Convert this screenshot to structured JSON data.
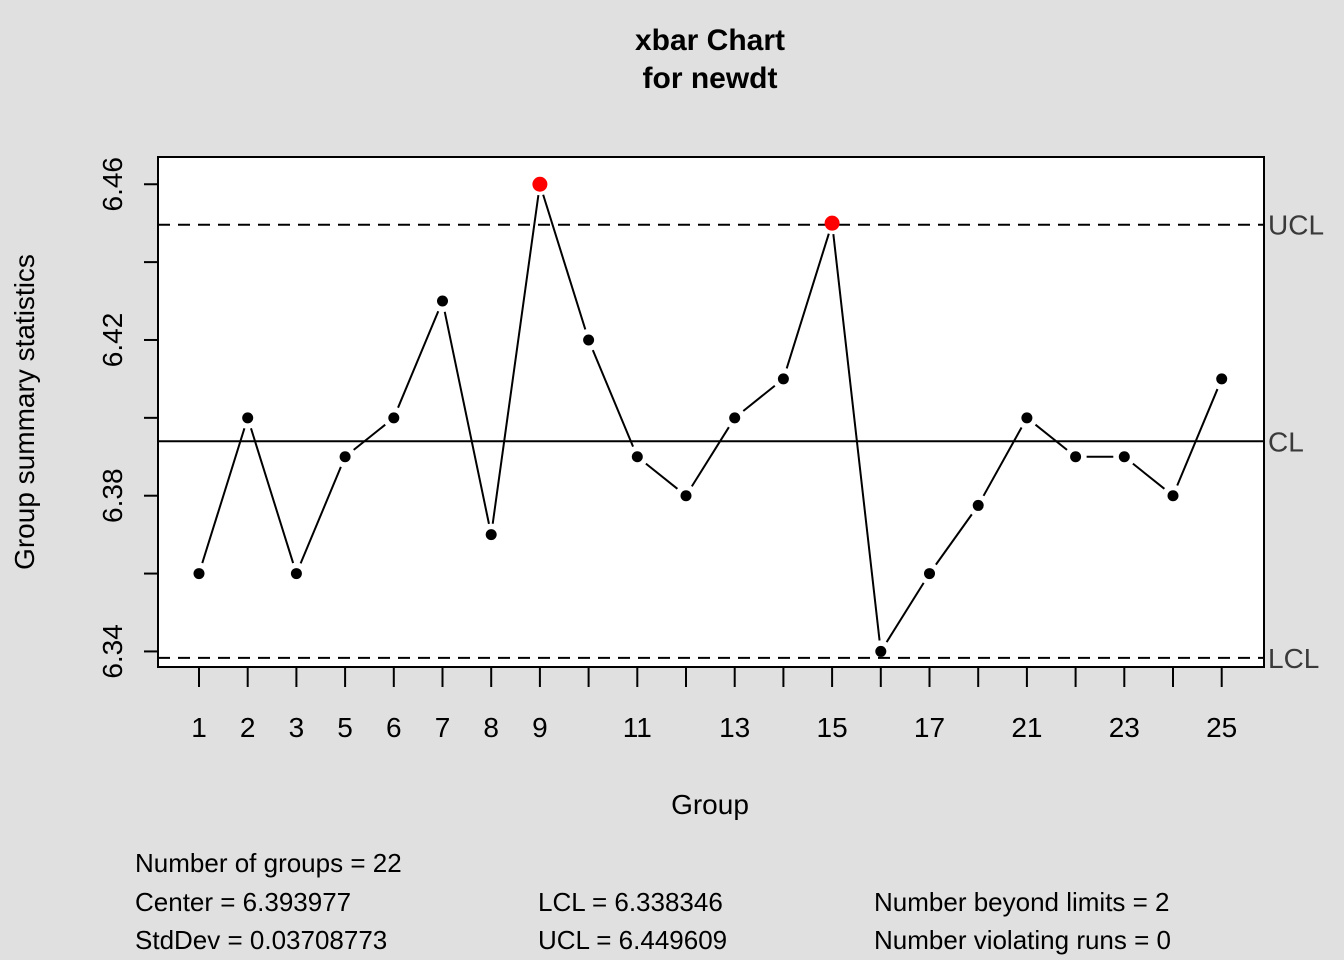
{
  "chart_data": {
    "type": "line",
    "title": "xbar Chart",
    "subtitle": "for newdt",
    "xlabel": "Group",
    "ylabel": "Group summary statistics",
    "ylim": [
      6.336,
      6.467
    ],
    "y_ticks": [
      "6.34",
      "6.38",
      "6.42",
      "6.46"
    ],
    "x_labels": [
      "1",
      "2",
      "3",
      "5",
      "6",
      "7",
      "8",
      "9",
      "11",
      "13",
      "15",
      "17",
      "21",
      "23",
      "25"
    ],
    "x": [
      1,
      2,
      3,
      4,
      5,
      6,
      7,
      8,
      9,
      10,
      11,
      12,
      13,
      14,
      15,
      16,
      17,
      18,
      19,
      20,
      21,
      22
    ],
    "values": [
      6.36,
      6.4,
      6.36,
      6.39,
      6.4,
      6.43,
      6.37,
      6.46,
      6.42,
      6.39,
      6.38,
      6.4,
      6.41,
      6.45,
      6.34,
      6.36,
      6.3775,
      6.4,
      6.39,
      6.39,
      6.38,
      6.41
    ],
    "out_of_control": [
      8,
      14
    ],
    "point_color": "#000000",
    "violation_color": "#ff0000",
    "limits": {
      "CL": {
        "label": "CL",
        "value": 6.393977
      },
      "UCL": {
        "label": "UCL",
        "value": 6.449609
      },
      "LCL": {
        "label": "LCL",
        "value": 6.338346
      }
    },
    "grid": false
  },
  "stats": {
    "groups": "Number of groups = 22",
    "center": "Center = 6.393977",
    "stddev": "StdDev = 0.03708773",
    "lcl": "LCL = 6.338346",
    "ucl": "UCL = 6.449609",
    "beyond": "Number beyond limits = 2",
    "runs": "Number violating runs = 0"
  }
}
